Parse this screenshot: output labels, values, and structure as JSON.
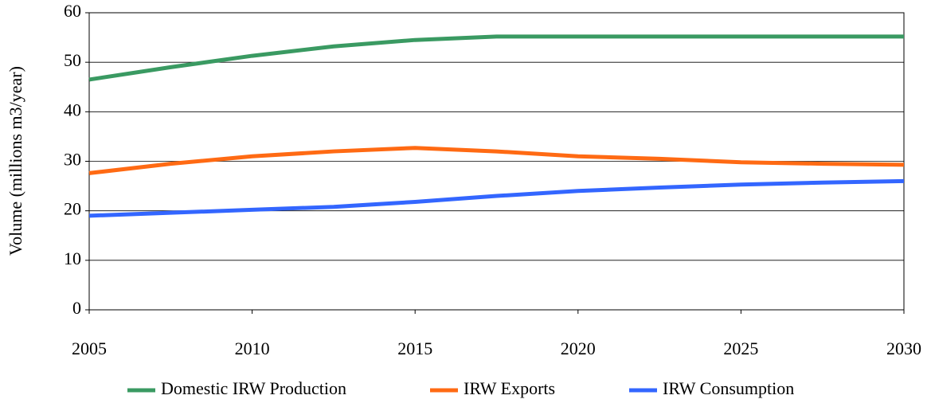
{
  "chart_data": {
    "type": "line",
    "y_label": "Volume (millions m3/year)",
    "x": [
      2005,
      2007.5,
      2010,
      2012.5,
      2015,
      2017.5,
      2020,
      2022.5,
      2025,
      2027.5,
      2030
    ],
    "series": [
      {
        "name": "Domestic IRW Production",
        "color": "#3a9a62",
        "values": [
          46.5,
          49,
          51.3,
          53.2,
          54.5,
          55.2,
          55.2,
          55.2,
          55.2,
          55.2,
          55.2
        ]
      },
      {
        "name": "IRW Exports",
        "color": "#ff6a13",
        "values": [
          27.6,
          29.5,
          31.0,
          32.0,
          32.7,
          32.0,
          31.0,
          30.5,
          29.8,
          29.5,
          29.3
        ]
      },
      {
        "name": "IRW Consumption",
        "color": "#3366ff",
        "values": [
          19.0,
          19.6,
          20.2,
          20.8,
          21.8,
          23.0,
          24.0,
          24.7,
          25.3,
          25.7,
          26.0
        ]
      }
    ],
    "xlim": [
      2005,
      2030
    ],
    "xticks": [
      2005,
      2010,
      2015,
      2020,
      2025,
      2030
    ],
    "ylim": [
      0,
      60
    ],
    "yticks": [
      0,
      10,
      20,
      30,
      40,
      50,
      60
    ],
    "grid": true,
    "legend": "bottom"
  }
}
